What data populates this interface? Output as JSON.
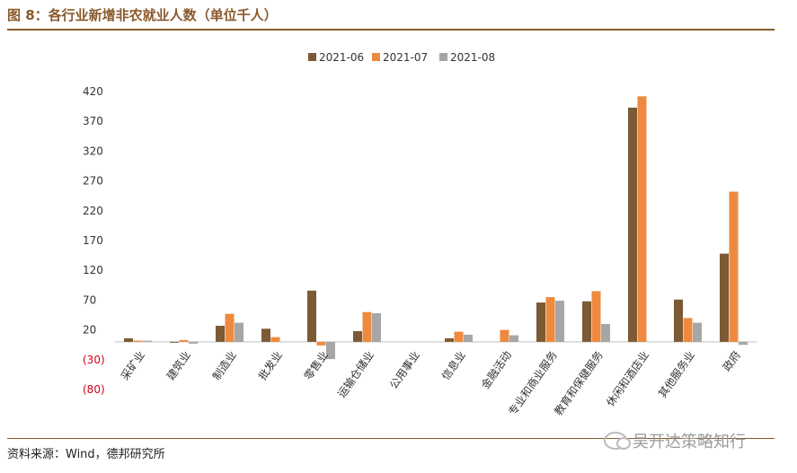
{
  "header": {
    "title": "图 8：各行业新增非农就业人数（单位千人）"
  },
  "footer": {
    "source": "资料来源：Wind，德邦研究所",
    "watermark": "吴开达策略知行"
  },
  "colors": {
    "2021-06": "#7b5a34",
    "2021-07": "#ed8a3f",
    "2021-08": "#a6a6a6",
    "accent": "#8a5a2b",
    "negative_tick": "#d0021b"
  },
  "chart_data": {
    "type": "bar",
    "title": "",
    "xlabel": "",
    "ylabel": "",
    "ylim": [
      -80,
      420
    ],
    "yticks": [
      420,
      370,
      320,
      270,
      220,
      170,
      120,
      70,
      20,
      -30,
      -80
    ],
    "ytick_labels": [
      "420",
      "370",
      "320",
      "270",
      "220",
      "170",
      "120",
      "70",
      "20",
      "(30)",
      "(80)"
    ],
    "grid": false,
    "legend_position": "top",
    "categories": [
      "采矿业",
      "建筑业",
      "制造业",
      "批发业",
      "零售业",
      "运输仓储业",
      "公用事业",
      "信息业",
      "金融活动",
      "专业和商业服务",
      "教育和保健服务",
      "休闲和酒店业",
      "其他服务业",
      "政府"
    ],
    "series": [
      {
        "name": "2021-06",
        "values": [
          6,
          -1,
          27,
          22,
          86,
          18,
          0,
          6,
          0,
          66,
          68,
          393,
          71,
          148
        ]
      },
      {
        "name": "2021-07",
        "values": [
          2,
          3,
          47,
          8,
          -6,
          50,
          0,
          17,
          20,
          75,
          85,
          412,
          40,
          252
        ]
      },
      {
        "name": "2021-08",
        "values": [
          2,
          -3,
          32,
          0,
          -29,
          48,
          0,
          12,
          11,
          69,
          30,
          0,
          32,
          -5
        ]
      }
    ]
  }
}
